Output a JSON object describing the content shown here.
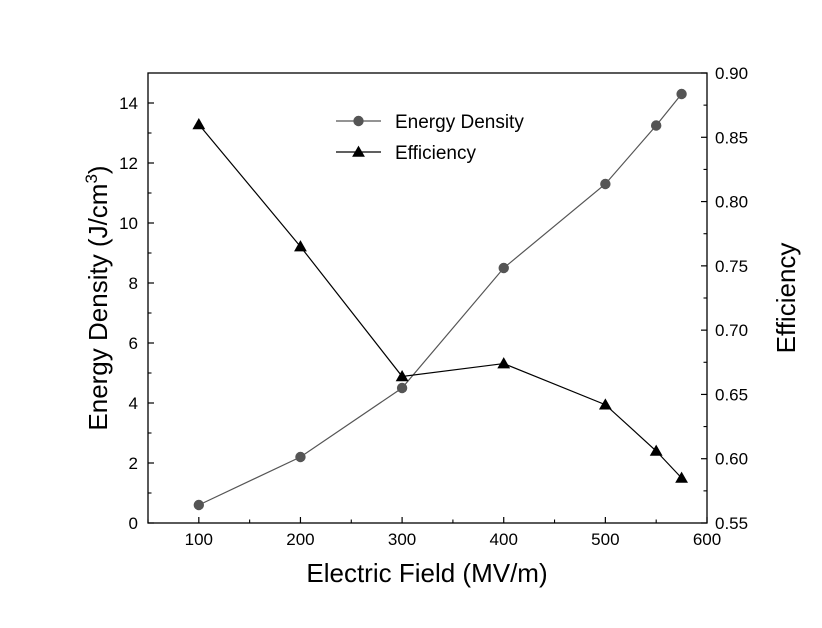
{
  "chart_data": {
    "type": "line",
    "title": "",
    "xlabel": "Electric Field (MV/m)",
    "ylabel_left": "Energy Density (J/cm",
    "ylabel_left_sup": "3",
    "ylabel_left_close": ")",
    "ylabel_right": "Efficiency",
    "xlim": [
      50,
      600
    ],
    "ylim_left": [
      0,
      15
    ],
    "ylim_right": [
      0.55,
      0.9
    ],
    "x_ticks": [
      100,
      200,
      300,
      400,
      500,
      600
    ],
    "x_tick_labels": [
      "100",
      "200",
      "300",
      "400",
      "500",
      "600"
    ],
    "y_left_ticks": [
      0,
      2,
      4,
      6,
      8,
      10,
      12,
      14
    ],
    "y_left_tick_labels": [
      "0",
      "2",
      "4",
      "6",
      "8",
      "10",
      "12",
      "14"
    ],
    "y_right_ticks": [
      0.55,
      0.6,
      0.65,
      0.7,
      0.75,
      0.8,
      0.85,
      0.9
    ],
    "y_right_tick_labels": [
      "0.55",
      "0.60",
      "0.65",
      "0.70",
      "0.75",
      "0.80",
      "0.85",
      "0.90"
    ],
    "legend_position": "top-center",
    "series": [
      {
        "name": "Energy Density",
        "axis": "left",
        "marker": "circle",
        "color": "#555555",
        "x": [
          100,
          200,
          300,
          400,
          500,
          550,
          575
        ],
        "values": [
          0.6,
          2.2,
          4.5,
          8.5,
          11.3,
          13.25,
          14.3
        ]
      },
      {
        "name": "Efficiency",
        "axis": "right",
        "marker": "triangle",
        "color": "#000000",
        "x": [
          100,
          200,
          300,
          400,
          500,
          550,
          575
        ],
        "values": [
          0.86,
          0.765,
          0.664,
          0.674,
          0.642,
          0.606,
          0.585
        ]
      }
    ]
  }
}
